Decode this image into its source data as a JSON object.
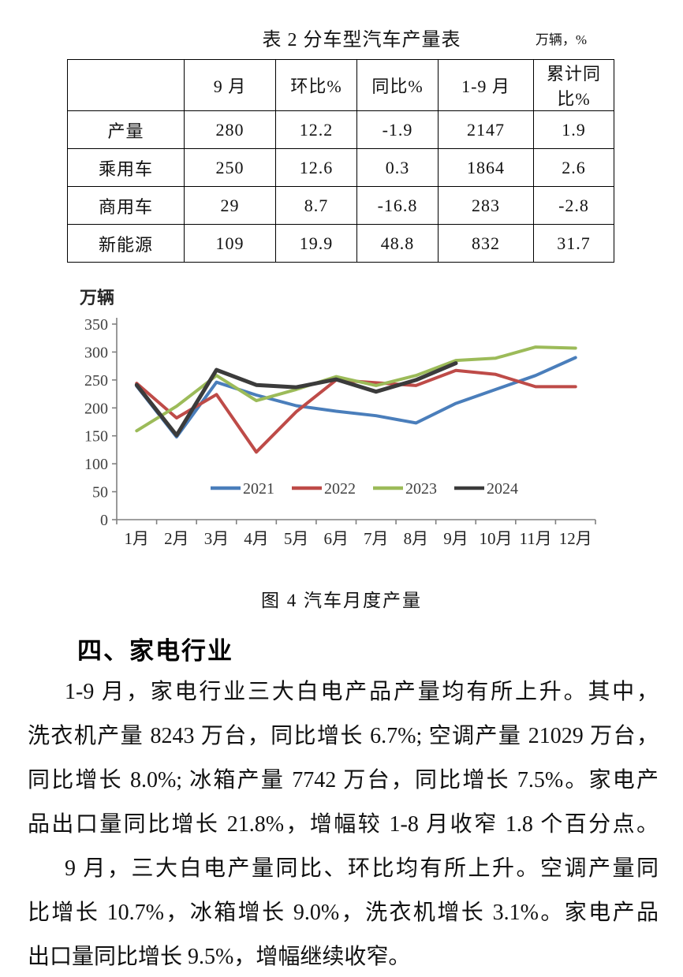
{
  "table": {
    "title": "表 2 分车型汽车产量表",
    "unit": "万辆，%",
    "columns": [
      "",
      "9 月",
      "环比%",
      "同比%",
      "1-9 月",
      "累计同比%"
    ],
    "rows": [
      {
        "label": "产量",
        "values": [
          "280",
          "12.2",
          "-1.9",
          "2147",
          "1.9"
        ]
      },
      {
        "label": "乘用车",
        "values": [
          "250",
          "12.6",
          "0.3",
          "1864",
          "2.6"
        ]
      },
      {
        "label": "商用车",
        "values": [
          "29",
          "8.7",
          "-16.8",
          "283",
          "-2.8"
        ]
      },
      {
        "label": "新能源",
        "values": [
          "109",
          "19.9",
          "48.8",
          "832",
          "31.7"
        ]
      }
    ]
  },
  "chart_data": {
    "type": "line",
    "title": "",
    "xlabel": "",
    "ylabel": "万辆",
    "ylim": [
      0,
      350
    ],
    "ytick_step": 50,
    "grid": false,
    "legend_position": "inside-bottom",
    "axis_color": "#808080",
    "tick_label_color": "#404040",
    "categories": [
      "1月",
      "2月",
      "3月",
      "4月",
      "5月",
      "6月",
      "7月",
      "8月",
      "9月",
      "10月",
      "11月",
      "12月"
    ],
    "series": [
      {
        "name": "2021",
        "color": "#4A7EBB",
        "thick": false,
        "values": [
          239,
          148,
          246,
          223,
          204,
          194,
          186,
          173,
          208,
          233,
          258,
          290
        ]
      },
      {
        "name": "2022",
        "color": "#BE4B48",
        "thick": false,
        "values": [
          244,
          182,
          224,
          121,
          193,
          250,
          245,
          240,
          267,
          260,
          238,
          238
        ]
      },
      {
        "name": "2023",
        "color": "#9CBB59",
        "thick": false,
        "values": [
          159,
          203,
          258,
          213,
          233,
          256,
          240,
          258,
          285,
          289,
          309,
          307
        ]
      },
      {
        "name": "2024",
        "color": "#3B3B3B",
        "thick": true,
        "values": [
          241,
          151,
          268,
          241,
          237,
          251,
          229,
          250,
          280
        ]
      }
    ]
  },
  "figure": {
    "caption": "图 4 汽车月度产量"
  },
  "section": {
    "heading": "四、家电行业"
  },
  "paragraphs": [
    {
      "lines": [
        "1-9 月，家电行业三大白电产品产量均有所上升。其中，",
        "洗衣机产量 8243 万台，同比增长 6.7%; 空调产量 21029 万台，",
        "同比增长 8.0%; 冰箱产量 7742 万台，同比增长 7.5%。家电产",
        "品出口量同比增长 21.8%，增幅较 1-8 月收窄 1.8 个百分点。"
      ]
    },
    {
      "lines": [
        "9 月，三大白电产量同比、环比均有所上升。空调产量同",
        "比增长 10.7%，冰箱增长 9.0%，洗衣机增长 3.1%。家电产品",
        "出口量同比增长 9.5%，增幅继续收窄。"
      ]
    }
  ]
}
